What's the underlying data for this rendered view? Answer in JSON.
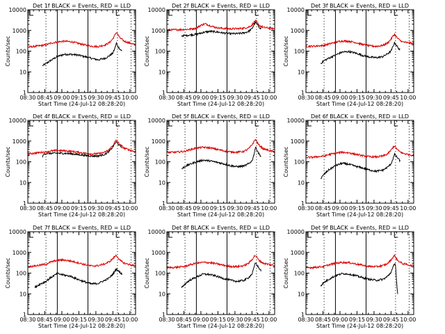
{
  "figure": {
    "x_label": "Start Time (24-Jul-12 08:28:20)",
    "y_label": "Counts/sec",
    "x_tick_labels": [
      "08:30",
      "08:45",
      "09:00",
      "09:15",
      "09:30",
      "09:45",
      "10:00"
    ],
    "y_tick_labels": [
      "1",
      "10",
      "100",
      "1000",
      "10000"
    ],
    "colors": {
      "events": "#000000",
      "lld": "#dd0000",
      "frame": "#000000"
    }
  },
  "chart_data": [
    {
      "type": "line",
      "title": "Det 1f BLACK = Events, RED = LLD",
      "xlabel": "Start Time (24-Jul-12 08:28:20)",
      "ylabel": "Counts/sec",
      "x_unit": "minutes after 08:30",
      "xlim": [
        0,
        95
      ],
      "ylim": [
        1,
        10000
      ],
      "y_scale": "log",
      "vlines_solid": [
        26,
        53
      ],
      "vlines_dotted": [
        16,
        79,
        91
      ],
      "series": [
        {
          "name": "Events",
          "color": "#000000",
          "x_start": 13,
          "x": [
            13,
            16,
            20,
            26,
            32,
            38,
            44,
            50,
            56,
            62,
            68,
            72,
            75,
            77,
            78,
            79,
            81,
            83
          ],
          "y": [
            20,
            25,
            35,
            55,
            70,
            70,
            65,
            55,
            45,
            38,
            45,
            60,
            80,
            150,
            250,
            180,
            130,
            100
          ]
        },
        {
          "name": "LLD",
          "color": "#dd0000",
          "x_start": 0,
          "x": [
            0,
            8,
            16,
            20,
            26,
            32,
            38,
            44,
            50,
            56,
            62,
            68,
            72,
            75,
            77,
            78,
            79,
            81,
            85,
            95
          ],
          "y": [
            155,
            175,
            200,
            240,
            280,
            300,
            285,
            240,
            200,
            175,
            165,
            200,
            260,
            400,
            620,
            820,
            700,
            450,
            300,
            200
          ]
        }
      ]
    },
    {
      "type": "line",
      "title": "Det 2f BLACK = Events, RED = LLD",
      "xlabel": "Start Time (24-Jul-12 08:28:20)",
      "ylabel": "Counts/sec",
      "x_unit": "minutes after 08:30",
      "xlim": [
        0,
        95
      ],
      "ylim": [
        1,
        10000
      ],
      "y_scale": "log",
      "vlines_solid": [
        26,
        53
      ],
      "vlines_dotted": [
        16,
        79,
        91
      ],
      "series": [
        {
          "name": "Events",
          "color": "#000000",
          "x_start": 13,
          "x": [
            13,
            20,
            26,
            32,
            38,
            44,
            50,
            56,
            62,
            68,
            72,
            75,
            77,
            78,
            79,
            81,
            83
          ],
          "y": [
            550,
            600,
            650,
            800,
            900,
            850,
            750,
            700,
            700,
            760,
            900,
            1200,
            2000,
            2500,
            2200,
            1500,
            1200
          ]
        },
        {
          "name": "LLD",
          "color": "#dd0000",
          "x_start": 0,
          "x": [
            0,
            13,
            20,
            26,
            30,
            34,
            38,
            44,
            50,
            56,
            62,
            68,
            72,
            75,
            77,
            78,
            79,
            81,
            85,
            95
          ],
          "y": [
            1050,
            1100,
            1150,
            1300,
            1800,
            2100,
            1700,
            1350,
            1250,
            1200,
            1220,
            1280,
            1450,
            1800,
            2600,
            3000,
            2700,
            1800,
            1400,
            1200
          ]
        }
      ]
    },
    {
      "type": "line",
      "title": "Det 3f BLACK = Events, RED = LLD",
      "xlabel": "Start Time (24-Jul-12 08:28:20)",
      "ylabel": "Counts/sec",
      "x_unit": "minutes after 08:30",
      "xlim": [
        0,
        95
      ],
      "ylim": [
        1,
        10000
      ],
      "y_scale": "log",
      "vlines_solid": [
        26,
        53
      ],
      "vlines_dotted": [
        16,
        79,
        91
      ],
      "series": [
        {
          "name": "Events",
          "color": "#000000",
          "x_start": 13,
          "x": [
            13,
            16,
            20,
            26,
            32,
            38,
            44,
            50,
            56,
            62,
            68,
            72,
            75,
            77,
            78,
            79,
            81,
            83
          ],
          "y": [
            25,
            35,
            45,
            65,
            90,
            95,
            80,
            62,
            52,
            48,
            55,
            75,
            100,
            180,
            260,
            220,
            150,
            110
          ]
        },
        {
          "name": "LLD",
          "color": "#dd0000",
          "x_start": 0,
          "x": [
            0,
            8,
            16,
            20,
            26,
            32,
            38,
            44,
            50,
            56,
            62,
            68,
            72,
            75,
            77,
            78,
            79,
            81,
            85,
            95
          ],
          "y": [
            170,
            175,
            190,
            220,
            270,
            310,
            300,
            260,
            210,
            180,
            170,
            190,
            250,
            380,
            560,
            640,
            560,
            400,
            280,
            230
          ]
        }
      ]
    },
    {
      "type": "line",
      "title": "Det 4f BLACK = Events, RED = LLD",
      "xlabel": "Start Time (24-Jul-12 08:28:20)",
      "ylabel": "Counts/sec",
      "x_unit": "minutes after 08:30",
      "xlim": [
        0,
        95
      ],
      "ylim": [
        1,
        10000
      ],
      "y_scale": "log",
      "vlines_solid": [
        26,
        53
      ],
      "vlines_dotted": [
        16,
        79,
        91
      ],
      "series": [
        {
          "name": "Events",
          "color": "#000000",
          "x_start": 13,
          "x": [
            13,
            14,
            16,
            20,
            26,
            32,
            38,
            44,
            50,
            56,
            62,
            68,
            72,
            75,
            77,
            78,
            79,
            81,
            83
          ],
          "y": [
            170,
            230,
            250,
            255,
            260,
            255,
            245,
            225,
            205,
            190,
            190,
            230,
            330,
            520,
            800,
            900,
            800,
            600,
            500
          ]
        },
        {
          "name": "LLD",
          "color": "#dd0000",
          "x_start": 0,
          "x": [
            0,
            8,
            16,
            20,
            26,
            32,
            38,
            44,
            50,
            56,
            62,
            68,
            72,
            75,
            77,
            78,
            79,
            81,
            85,
            95
          ],
          "y": [
            240,
            270,
            300,
            330,
            350,
            340,
            320,
            290,
            260,
            240,
            245,
            290,
            400,
            620,
            950,
            1100,
            950,
            700,
            450,
            300
          ]
        }
      ]
    },
    {
      "type": "line",
      "title": "Det 5f BLACK = Events, RED = LLD",
      "xlabel": "Start Time (24-Jul-12 08:28:20)",
      "ylabel": "Counts/sec",
      "x_unit": "minutes after 08:30",
      "xlim": [
        0,
        95
      ],
      "ylim": [
        1,
        10000
      ],
      "y_scale": "log",
      "vlines_solid": [
        26,
        53
      ],
      "vlines_dotted": [
        16,
        79,
        91
      ],
      "series": [
        {
          "name": "Events",
          "color": "#000000",
          "x_start": 13,
          "x": [
            13,
            16,
            20,
            26,
            32,
            38,
            44,
            50,
            56,
            62,
            68,
            72,
            75,
            77,
            78,
            79,
            81,
            83
          ],
          "y": [
            45,
            60,
            75,
            100,
            120,
            110,
            95,
            80,
            65,
            58,
            62,
            80,
            110,
            250,
            500,
            420,
            250,
            180
          ]
        },
        {
          "name": "LLD",
          "color": "#dd0000",
          "x_start": 0,
          "x": [
            0,
            8,
            16,
            20,
            26,
            32,
            38,
            44,
            50,
            56,
            62,
            68,
            72,
            75,
            77,
            78,
            79,
            81,
            85,
            95
          ],
          "y": [
            280,
            290,
            320,
            380,
            460,
            500,
            470,
            400,
            340,
            300,
            290,
            320,
            420,
            650,
            1000,
            1200,
            1000,
            650,
            420,
            300
          ]
        }
      ]
    },
    {
      "type": "line",
      "title": "Det 6f BLACK = Events, RED = LLD",
      "xlabel": "Start Time (24-Jul-12 08:28:20)",
      "ylabel": "Counts/sec",
      "x_unit": "minutes after 08:30",
      "xlim": [
        0,
        95
      ],
      "ylim": [
        1,
        10000
      ],
      "y_scale": "log",
      "vlines_solid": [
        26,
        53
      ],
      "vlines_dotted": [
        16,
        79,
        91
      ],
      "series": [
        {
          "name": "Events",
          "color": "#000000",
          "x_start": 13,
          "x": [
            13,
            16,
            20,
            26,
            32,
            38,
            44,
            50,
            56,
            62,
            68,
            72,
            75,
            77,
            78,
            79,
            81,
            83
          ],
          "y": [
            15,
            25,
            40,
            65,
            85,
            75,
            60,
            50,
            40,
            35,
            40,
            55,
            80,
            150,
            230,
            200,
            150,
            110
          ]
        },
        {
          "name": "LLD",
          "color": "#dd0000",
          "x_start": 0,
          "x": [
            0,
            8,
            16,
            20,
            26,
            32,
            38,
            44,
            50,
            56,
            62,
            68,
            72,
            75,
            77,
            78,
            79,
            81,
            85,
            95
          ],
          "y": [
            160,
            170,
            190,
            220,
            260,
            290,
            270,
            230,
            195,
            175,
            170,
            190,
            240,
            360,
            520,
            580,
            500,
            360,
            260,
            200
          ]
        }
      ]
    },
    {
      "type": "line",
      "title": "Det 7f BLACK = Events, RED = LLD",
      "xlabel": "Start Time (24-Jul-12 08:28:20)",
      "ylabel": "Counts/sec",
      "x_unit": "minutes after 08:30",
      "xlim": [
        0,
        95
      ],
      "ylim": [
        1,
        10000
      ],
      "y_scale": "log",
      "vlines_solid": [
        26,
        53
      ],
      "vlines_dotted": [
        16,
        79,
        91
      ],
      "series": [
        {
          "name": "Events",
          "color": "#000000",
          "x_start": 6,
          "x": [
            6,
            10,
            16,
            20,
            26,
            32,
            38,
            44,
            50,
            56,
            62,
            68,
            72,
            75,
            77,
            78,
            79,
            81,
            83
          ],
          "y": [
            20,
            28,
            40,
            60,
            95,
            80,
            70,
            50,
            38,
            30,
            32,
            45,
            60,
            90,
            130,
            160,
            140,
            110,
            90
          ]
        },
        {
          "name": "LLD",
          "color": "#dd0000",
          "x_start": 0,
          "x": [
            0,
            8,
            16,
            20,
            26,
            32,
            38,
            44,
            50,
            56,
            62,
            68,
            72,
            75,
            77,
            78,
            79,
            81,
            85,
            95
          ],
          "y": [
            200,
            230,
            270,
            340,
            420,
            430,
            380,
            320,
            260,
            220,
            230,
            280,
            360,
            500,
            650,
            720,
            620,
            420,
            300,
            220
          ]
        }
      ]
    },
    {
      "type": "line",
      "title": "Det 8f BLACK = Events, RED = LLD",
      "xlabel": "Start Time (24-Jul-12 08:28:20)",
      "ylabel": "Counts/sec",
      "x_unit": "minutes after 08:30",
      "xlim": [
        0,
        95
      ],
      "ylim": [
        1,
        10000
      ],
      "y_scale": "log",
      "vlines_solid": [
        26,
        53
      ],
      "vlines_dotted": [
        16,
        79,
        91
      ],
      "series": [
        {
          "name": "Events",
          "color": "#000000",
          "x_start": 13,
          "x": [
            13,
            16,
            20,
            26,
            32,
            38,
            44,
            50,
            56,
            62,
            68,
            72,
            75,
            77,
            78,
            79,
            81,
            83
          ],
          "y": [
            20,
            30,
            45,
            65,
            90,
            85,
            70,
            55,
            45,
            40,
            45,
            60,
            90,
            200,
            320,
            270,
            180,
            130
          ]
        },
        {
          "name": "LLD",
          "color": "#dd0000",
          "x_start": 0,
          "x": [
            0,
            8,
            16,
            20,
            26,
            32,
            38,
            44,
            50,
            56,
            62,
            68,
            72,
            75,
            77,
            78,
            79,
            81,
            85,
            95
          ],
          "y": [
            180,
            190,
            210,
            250,
            300,
            330,
            320,
            280,
            240,
            210,
            205,
            230,
            300,
            450,
            650,
            720,
            620,
            420,
            300,
            230
          ]
        }
      ]
    },
    {
      "type": "line",
      "title": "Det 9f BLACK = Events, RED = LLD",
      "xlabel": "Start Time (24-Jul-12 08:28:20)",
      "ylabel": "Counts/sec",
      "x_unit": "minutes after 08:30",
      "xlim": [
        0,
        95
      ],
      "ylim": [
        1,
        10000
      ],
      "y_scale": "log",
      "vlines_solid": [
        26,
        53
      ],
      "vlines_dotted": [
        16,
        79,
        91
      ],
      "series": [
        {
          "name": "Events",
          "color": "#000000",
          "x_start": 13,
          "x": [
            13,
            16,
            20,
            26,
            32,
            38,
            44,
            50,
            56,
            62,
            68,
            72,
            75,
            77,
            78,
            79,
            80,
            81
          ],
          "y": [
            25,
            35,
            50,
            75,
            95,
            90,
            75,
            60,
            50,
            45,
            50,
            70,
            110,
            200,
            300,
            250,
            30,
            8
          ]
        },
        {
          "name": "LLD",
          "color": "#dd0000",
          "x_start": 0,
          "x": [
            0,
            8,
            16,
            20,
            26,
            32,
            38,
            44,
            50,
            56,
            62,
            68,
            72,
            75,
            77,
            78,
            79,
            81,
            85,
            95
          ],
          "y": [
            180,
            190,
            210,
            250,
            300,
            330,
            320,
            280,
            240,
            210,
            205,
            230,
            290,
            430,
            620,
            700,
            600,
            400,
            290,
            220
          ]
        }
      ]
    }
  ]
}
